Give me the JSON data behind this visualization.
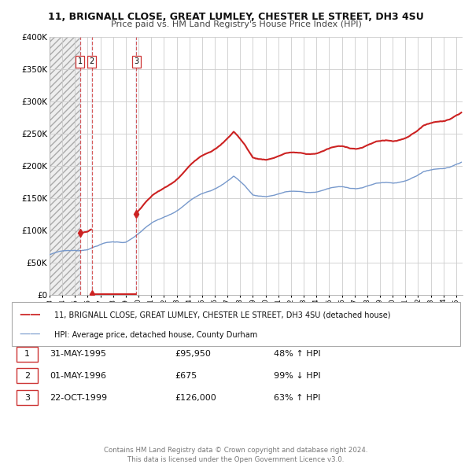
{
  "title": "11, BRIGNALL CLOSE, GREAT LUMLEY, CHESTER LE STREET, DH3 4SU",
  "subtitle": "Price paid vs. HM Land Registry's House Price Index (HPI)",
  "ylim": [
    0,
    400000
  ],
  "yticks": [
    0,
    50000,
    100000,
    150000,
    200000,
    250000,
    300000,
    350000,
    400000
  ],
  "ytick_labels": [
    "£0",
    "£50K",
    "£100K",
    "£150K",
    "£200K",
    "£250K",
    "£300K",
    "£350K",
    "£400K"
  ],
  "xlim_start": 1993.0,
  "xlim_end": 2025.5,
  "hpi_color": "#7799cc",
  "price_color": "#cc2222",
  "vline_color": "#cc3333",
  "background_color": "#ffffff",
  "grid_color": "#cccccc",
  "transactions": [
    {
      "label": "1",
      "date_num": 1995.41,
      "price": 95950,
      "date_str": "31-MAY-1995",
      "price_str": "£95,950",
      "pct_str": "48% ↑ HPI"
    },
    {
      "label": "2",
      "date_num": 1996.33,
      "price": 675,
      "date_str": "01-MAY-1996",
      "price_str": "£675",
      "pct_str": "99% ↓ HPI"
    },
    {
      "label": "3",
      "date_num": 1999.81,
      "price": 126000,
      "date_str": "22-OCT-1999",
      "price_str": "£126,000",
      "pct_str": "63% ↑ HPI"
    }
  ],
  "legend_entries": [
    "11, BRIGNALL CLOSE, GREAT LUMLEY, CHESTER LE STREET, DH3 4SU (detached house)",
    "HPI: Average price, detached house, County Durham"
  ],
  "footer_lines": [
    "Contains HM Land Registry data © Crown copyright and database right 2024.",
    "This data is licensed under the Open Government Licence v3.0."
  ]
}
